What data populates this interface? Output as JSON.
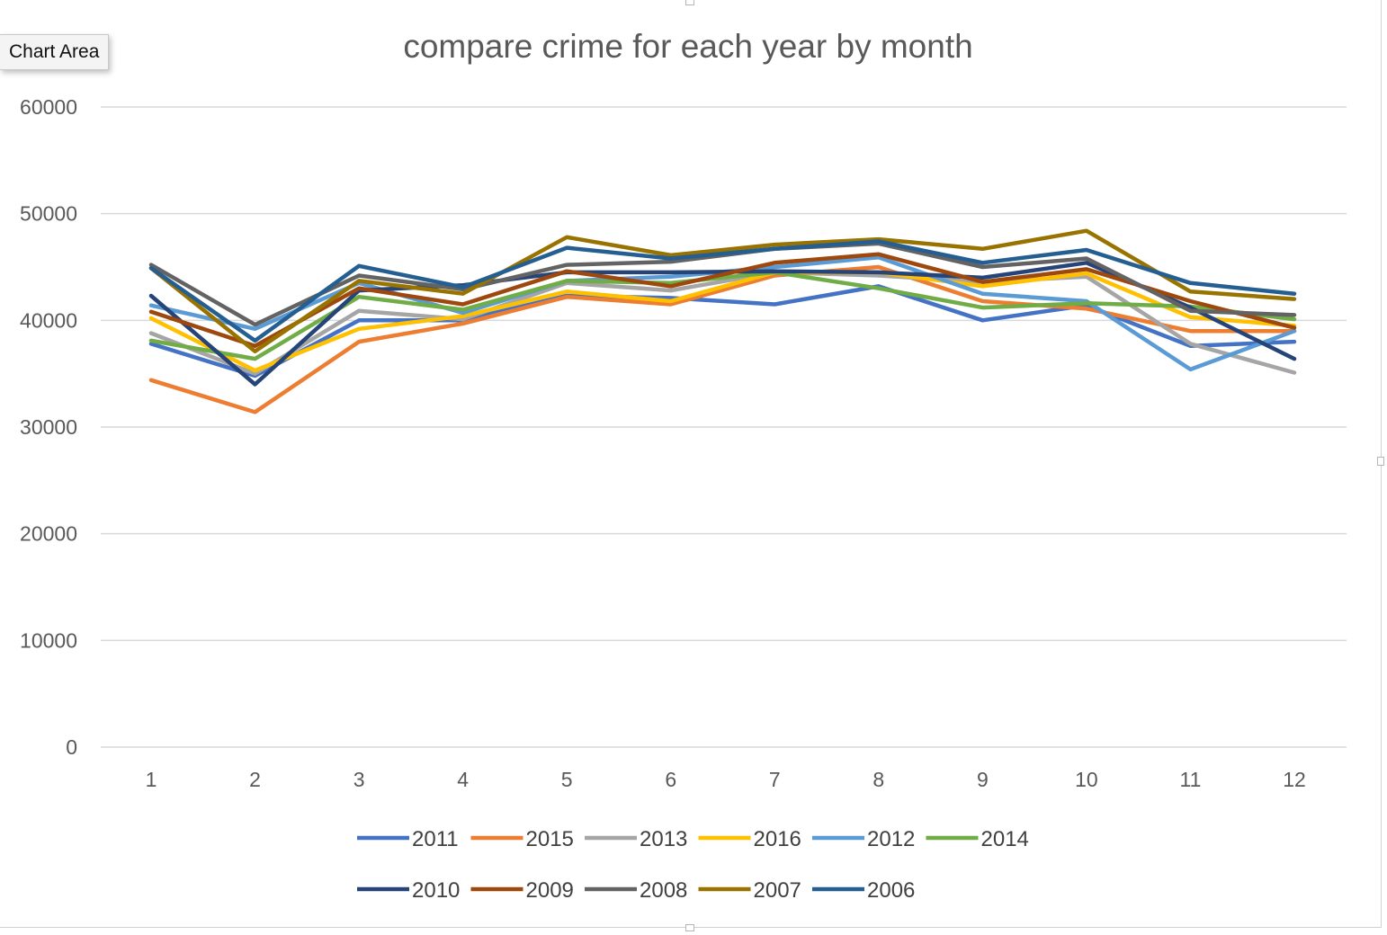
{
  "tooltip": {
    "label": "Chart Area"
  },
  "chart_data": {
    "type": "line",
    "title": "compare crime for each year by month",
    "xlabel": "",
    "ylabel": "",
    "x": [
      1,
      2,
      3,
      4,
      5,
      6,
      7,
      8,
      9,
      10,
      11,
      12
    ],
    "ylim": [
      0,
      60000
    ],
    "yticks": [
      0,
      10000,
      20000,
      30000,
      40000,
      50000,
      60000
    ],
    "grid": true,
    "legend": "bottom",
    "series": [
      {
        "name": "2011",
        "color": "#4472C4",
        "values": [
          37800,
          34800,
          40000,
          40000,
          42300,
          42100,
          41500,
          43200,
          40000,
          41400,
          37600,
          38000
        ]
      },
      {
        "name": "2015",
        "color": "#ED7D31",
        "values": [
          34400,
          31400,
          38000,
          39700,
          42200,
          41500,
          44200,
          45000,
          41800,
          41100,
          39000,
          39000
        ]
      },
      {
        "name": "2013",
        "color": "#A5A5A5",
        "values": [
          38800,
          35000,
          40900,
          40100,
          43500,
          42800,
          44500,
          44200,
          43600,
          44100,
          37800,
          35100
        ]
      },
      {
        "name": "2016",
        "color": "#FFC000",
        "values": [
          40200,
          35300,
          39200,
          40400,
          42700,
          41800,
          44500,
          44500,
          43200,
          44400,
          40300,
          39500
        ]
      },
      {
        "name": "2012",
        "color": "#5B9BD5",
        "values": [
          41400,
          39200,
          43500,
          40700,
          43700,
          44100,
          45000,
          45900,
          42500,
          41800,
          35400,
          39000
        ]
      },
      {
        "name": "2014",
        "color": "#70AD47",
        "values": [
          38100,
          36400,
          42200,
          41000,
          43700,
          43500,
          44500,
          43000,
          41200,
          41600,
          41300,
          40100
        ]
      },
      {
        "name": "2010",
        "color": "#264478",
        "values": [
          42300,
          34000,
          42800,
          43300,
          44500,
          44500,
          44600,
          44500,
          44000,
          45400,
          41200,
          36400
        ]
      },
      {
        "name": "2009",
        "color": "#9E480E",
        "values": [
          40800,
          37600,
          43000,
          41500,
          44600,
          43200,
          45400,
          46200,
          43600,
          44800,
          41800,
          39300
        ]
      },
      {
        "name": "2008",
        "color": "#636363",
        "values": [
          45200,
          39600,
          44200,
          42900,
          45200,
          45500,
          46700,
          47200,
          45000,
          45800,
          40900,
          40500
        ]
      },
      {
        "name": "2007",
        "color": "#997300",
        "values": [
          44900,
          37100,
          43700,
          42500,
          47800,
          46100,
          47100,
          47600,
          46700,
          48400,
          42700,
          42000
        ]
      },
      {
        "name": "2006",
        "color": "#255E91",
        "values": [
          44900,
          38100,
          45100,
          43100,
          46800,
          45800,
          46700,
          47400,
          45400,
          46600,
          43500,
          42500
        ]
      }
    ]
  }
}
